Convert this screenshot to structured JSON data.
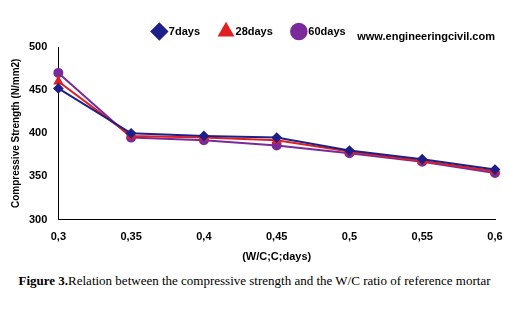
{
  "chart_data": {
    "type": "line",
    "x_label": "(W/C;C;days)",
    "y_label": "Compressive Strength (N/mm2)",
    "categories": [
      "0,3",
      "0,35",
      "0,4",
      "0,45",
      "0,5",
      "0,55",
      "0,6"
    ],
    "series": [
      {
        "name": "7days",
        "color": "#1f1f8a",
        "marker": "diamond",
        "line_style": "solid",
        "values": [
          452,
          400,
          397,
          395,
          380,
          370,
          358
        ]
      },
      {
        "name": "28days",
        "color": "#e02020",
        "marker": "triangle",
        "line_style": "solid",
        "values": [
          460,
          397,
          395,
          392,
          379,
          368,
          356
        ]
      },
      {
        "name": "60days",
        "color": "#7a2a9a",
        "marker": "circle",
        "line_style": "solid",
        "values": [
          470,
          395,
          392,
          386,
          377,
          367,
          354
        ]
      }
    ],
    "ylim": [
      300,
      500
    ],
    "yticks": [
      300,
      350,
      400,
      450,
      500
    ],
    "grid": false,
    "legend": "top"
  },
  "watermark": "www.engineeringcivil.com",
  "caption": {
    "label": "Figure 3.",
    "text": "Relation between the compressive strength and the W/C ratio of reference mortar"
  }
}
